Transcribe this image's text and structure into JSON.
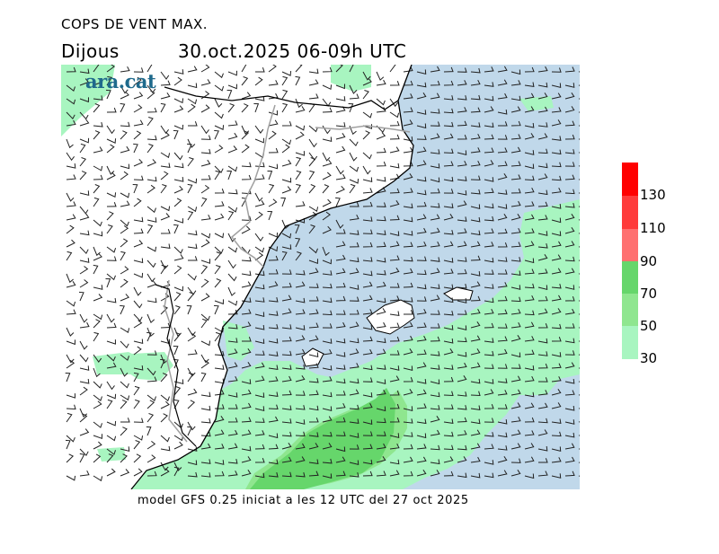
{
  "header": {
    "title": "COPS DE VENT MAX.",
    "day": "Dijous",
    "date_range": "30.oct.2025 06-09h UTC"
  },
  "logo": {
    "text": "ara.cat"
  },
  "footer": {
    "model_info": "model GFS 0.25 iniciat a les 12 UTC del 27 oct 2025"
  },
  "legend": {
    "labels": [
      "130",
      "110",
      "90",
      "70",
      "50",
      "30"
    ],
    "colors": [
      "#ff0000",
      "#ff3b3b",
      "#ff7070",
      "#66d66b",
      "#8fe68f",
      "#a8f5c0"
    ]
  },
  "map": {
    "colors": {
      "sea": "#c0d8ea",
      "land": "#ffffff",
      "gust_30": "#a8f5c0",
      "gust_50": "#8fe68f",
      "gust_70": "#66d66b",
      "coast": "#000000",
      "border": "#a0a0a0"
    }
  }
}
